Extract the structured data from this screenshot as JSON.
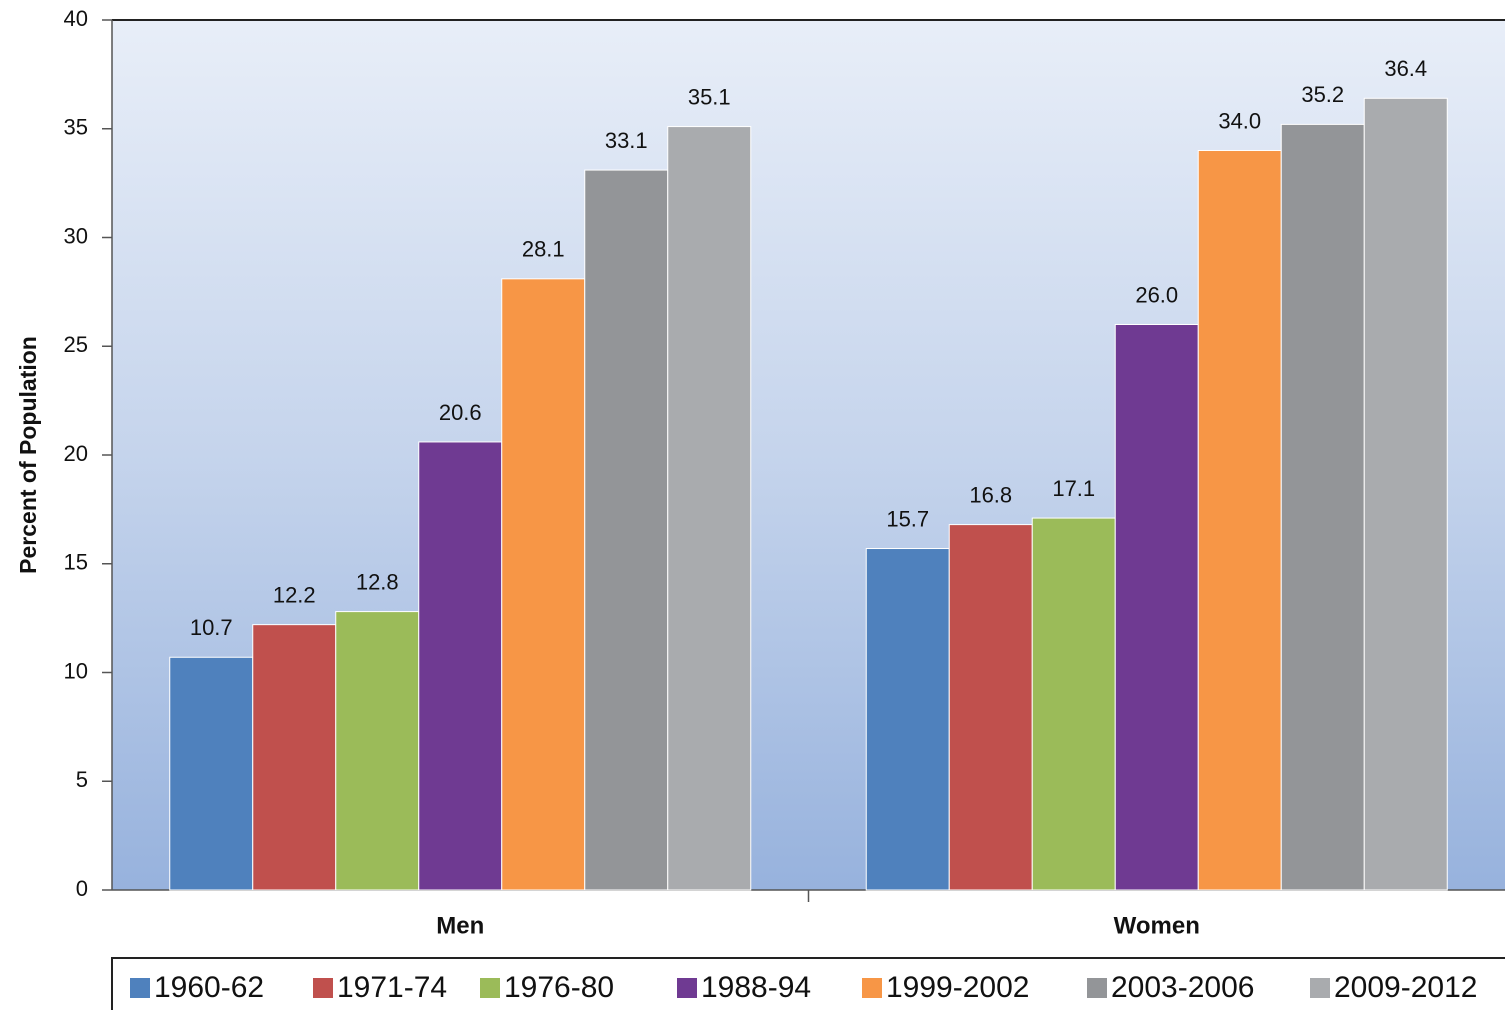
{
  "chart_data": {
    "type": "bar",
    "y_label": "Percent of Population",
    "categories": [
      "Men",
      "Women"
    ],
    "series": [
      {
        "name": "1960-62",
        "color": "#4f81bd",
        "values": [
          10.7,
          15.7
        ],
        "value_labels": [
          "10.7",
          "15.7"
        ]
      },
      {
        "name": "1971-74",
        "color": "#c0504d",
        "values": [
          12.2,
          16.8
        ],
        "value_labels": [
          "12.2",
          "16.8"
        ]
      },
      {
        "name": "1976-80",
        "color": "#9bbb59",
        "values": [
          12.8,
          17.1
        ],
        "value_labels": [
          "12.8",
          "17.1"
        ]
      },
      {
        "name": "1988-94",
        "color": "#6f3a92",
        "values": [
          20.6,
          26.0
        ],
        "value_labels": [
          "20.6",
          "26.0"
        ]
      },
      {
        "name": "1999-2002",
        "color": "#f79646",
        "values": [
          28.1,
          34.0
        ],
        "value_labels": [
          "28.1",
          "34.0"
        ]
      },
      {
        "name": "2003-2006",
        "color": "#939598",
        "values": [
          33.1,
          35.2
        ],
        "value_labels": [
          "33.1",
          "35.2"
        ]
      },
      {
        "name": "2009-2012",
        "color": "#a9abae",
        "values": [
          35.1,
          36.4
        ],
        "value_labels": [
          "35.1",
          "36.4"
        ]
      }
    ],
    "ylim": [
      0,
      40
    ],
    "yticks": [
      0,
      5,
      10,
      15,
      20,
      25,
      30,
      35,
      40
    ],
    "legend": "bottom"
  }
}
